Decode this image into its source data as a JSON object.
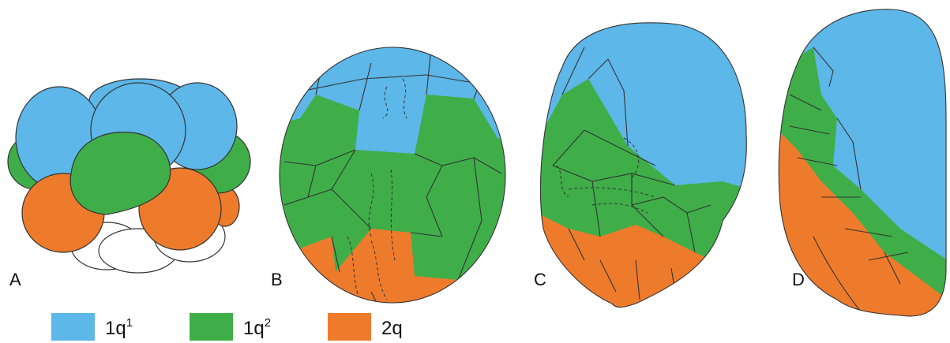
{
  "panels": [
    {
      "label": "A"
    },
    {
      "label": "B"
    },
    {
      "label": "C"
    },
    {
      "label": "D"
    }
  ],
  "legend": [
    {
      "label": {
        "base": "1q",
        "sup": "1"
      },
      "color": "#5db7e8"
    },
    {
      "label": {
        "base": "1q",
        "sup": "2"
      },
      "color": "#3fae49"
    },
    {
      "label": {
        "base": "2q",
        "sup": null
      },
      "color": "#ee7b2b"
    }
  ]
}
